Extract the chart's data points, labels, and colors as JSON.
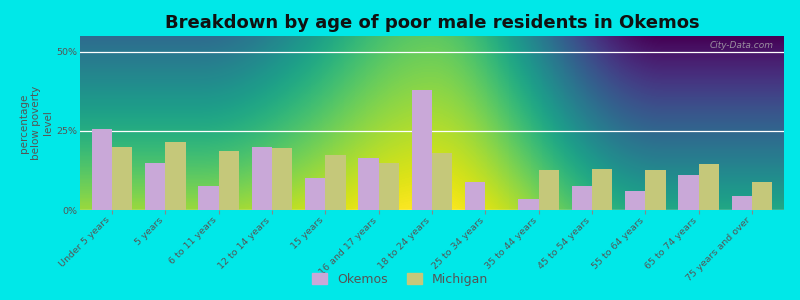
{
  "title": "Breakdown by age of poor male residents in Okemos",
  "ylabel": "percentage\nbelow poverty\nlevel",
  "categories": [
    "Under 5 years",
    "5 years",
    "6 to 11 years",
    "12 to 14 years",
    "15 years",
    "16 and 17 years",
    "18 to 24 years",
    "25 to 34 years",
    "35 to 44 years",
    "45 to 54 years",
    "55 to 64 years",
    "65 to 74 years",
    "75 years and over"
  ],
  "okemos_values": [
    25.5,
    15.0,
    7.5,
    20.0,
    10.0,
    16.5,
    38.0,
    9.0,
    3.5,
    7.5,
    6.0,
    11.0,
    4.5
  ],
  "michigan_values": [
    20.0,
    21.5,
    18.5,
    19.5,
    17.5,
    15.0,
    18.0,
    0.0,
    12.5,
    13.0,
    12.5,
    14.5,
    9.0
  ],
  "okemos_color": "#c9a8d8",
  "michigan_color": "#c5c87a",
  "ylim": [
    0,
    55
  ],
  "yticks": [
    0,
    25,
    50
  ],
  "ytick_labels": [
    "0%",
    "25%",
    "50%"
  ],
  "outer_bg": "#00e8e8",
  "bar_width": 0.38,
  "title_fontsize": 13,
  "axis_label_fontsize": 7.5,
  "tick_fontsize": 6.8,
  "legend_fontsize": 9,
  "watermark": "City-Data.com"
}
